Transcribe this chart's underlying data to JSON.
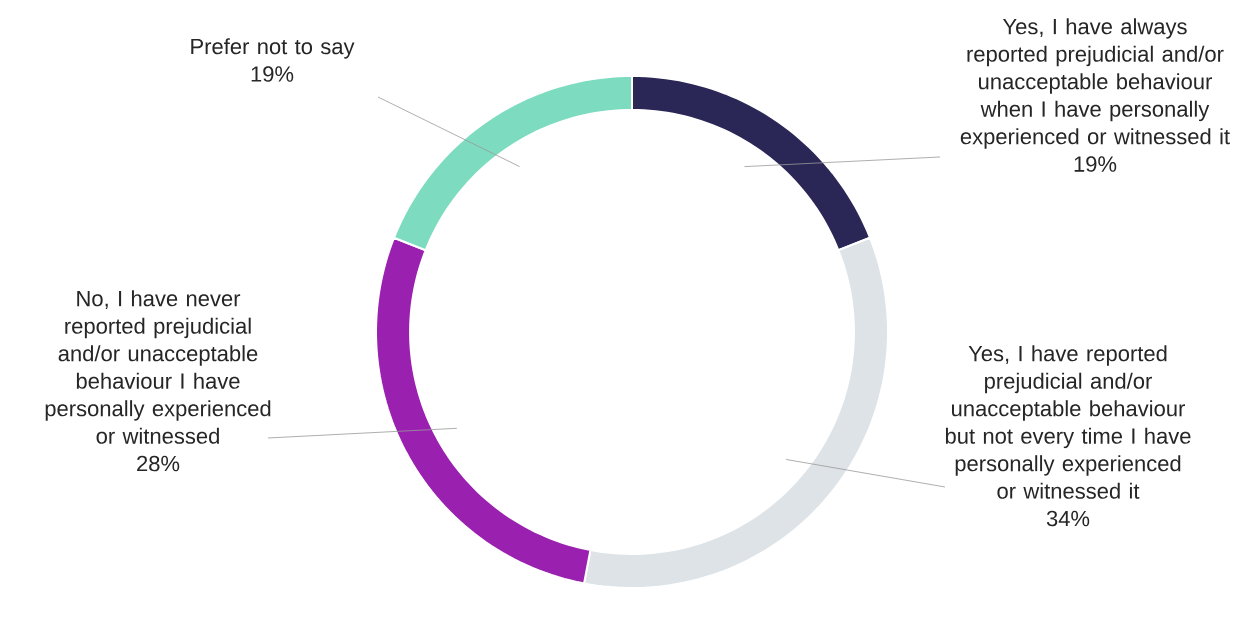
{
  "chart_data": {
    "type": "donut",
    "categories": [
      "Yes, I have always reported prejudicial and/or unacceptable behaviour when I have personally experienced or witnessed it",
      "Yes, I have reported prejudicial and/or unacceptable behaviour but not every time I have personally experienced or witnessed it",
      "No, I have never reported prejudicial and/or unacceptable behaviour I have personally experienced or witnessed",
      "Prefer not to say"
    ],
    "values": [
      19,
      34,
      28,
      19
    ],
    "value_labels": [
      "19%",
      "34%",
      "28%",
      "19%"
    ],
    "colors": [
      "#2a2757",
      "#dde3e6",
      "#9a20b0",
      "#7ddcc0"
    ]
  }
}
